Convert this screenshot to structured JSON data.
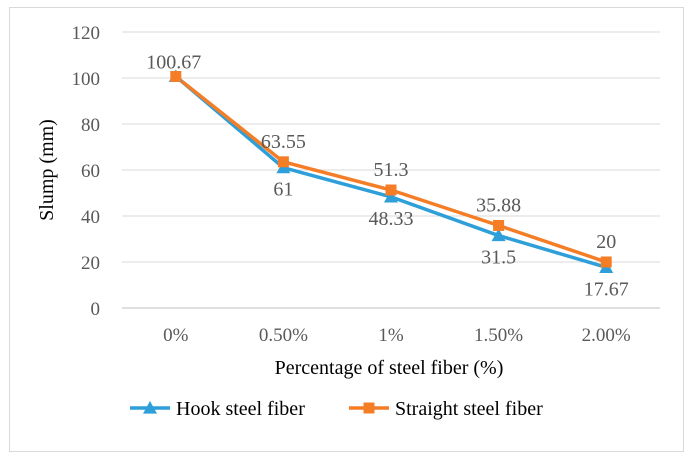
{
  "chart_data": {
    "type": "line",
    "categories": [
      "0%",
      "0.50%",
      "1%",
      "1.50%",
      "2.00%"
    ],
    "xlabel": "Percentage of steel fiber (%)",
    "ylabel": "Slump (mm)",
    "ylim": [
      0,
      120
    ],
    "yticks": [
      "0",
      "20",
      "40",
      "60",
      "80",
      "100",
      "120"
    ],
    "grid": true,
    "legend_position": "bottom",
    "series": [
      {
        "name": "Hook steel fiber",
        "color": "#2e9fd8",
        "marker": "triangle",
        "values": [
          100.67,
          61,
          48.33,
          31.5,
          17.67
        ],
        "labels": [
          "100.67",
          "61",
          "48.33",
          "31.5",
          "17.67"
        ]
      },
      {
        "name": "Straight steel fiber",
        "color": "#f47d26",
        "marker": "square",
        "values": [
          100.67,
          63.55,
          51.3,
          35.88,
          20
        ],
        "labels": [
          "100.67",
          "63.55",
          "51.3",
          "35.88",
          "20"
        ]
      }
    ]
  }
}
